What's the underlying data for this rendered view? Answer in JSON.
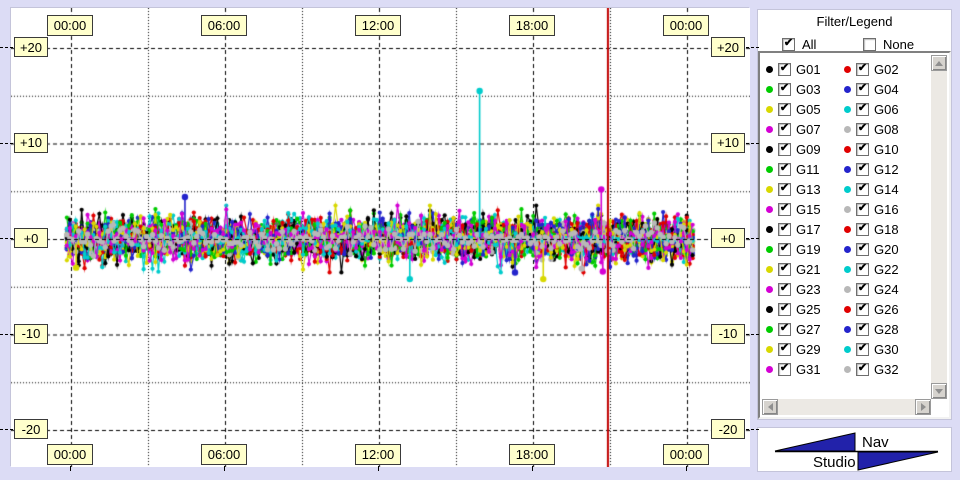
{
  "window": {
    "background": "#dcdcf5"
  },
  "chart_data": {
    "type": "scatter",
    "title": "",
    "x_axis": {
      "unit": "time",
      "range_hours": [
        0,
        24
      ],
      "major_hours": [
        0,
        6,
        12,
        18,
        24
      ],
      "tick_labels": [
        "00:00",
        "06:00",
        "12:00",
        "18:00",
        "00:00"
      ],
      "minor_hours": [
        3,
        9,
        15,
        21
      ],
      "grid": "dashed-major-dotted-minor"
    },
    "y_axis": {
      "range": [
        -20,
        20
      ],
      "major": [
        20,
        10,
        0,
        -10,
        -20
      ],
      "tick_labels": [
        "+20",
        "+10",
        "+0",
        "-10",
        "-20"
      ],
      "minor": [
        15,
        5,
        -5,
        -15
      ],
      "labels_both_sides": true
    },
    "cursor": {
      "hour": 20.92,
      "color": "#c00000"
    },
    "band": {
      "start_hour": -0.16,
      "end_hour": 24.25,
      "step_hours": 0.115,
      "sigma": 1.05,
      "clamp": 3.5,
      "seed": 42,
      "description": "dense noisy residual band for all satellites centered on 0, mostly within ±2.5"
    },
    "hug_zones": [
      {
        "series": "G30",
        "from": 17.4,
        "to": 24.3
      },
      {
        "series": "G23",
        "from": 14.6,
        "to": 17.2
      },
      {
        "series": "G15",
        "from": 4.9,
        "to": 7.8
      }
    ],
    "outliers": [
      {
        "series": "G30",
        "hour": 15.92,
        "value": 15.5,
        "stem_to": 0.2
      },
      {
        "series": "G23",
        "hour": 20.66,
        "value": 5.2,
        "stem_to": 0.4
      },
      {
        "series": "G23",
        "hour": 20.72,
        "value": -3.4,
        "stem_to": -0.4
      },
      {
        "series": "G12",
        "hour": 4.44,
        "value": 4.4,
        "stem_to": 0.9
      },
      {
        "series": "G14",
        "hour": 13.2,
        "value": -4.2,
        "stem_to": -0.7
      },
      {
        "series": "G13",
        "hour": 18.4,
        "value": -4.2,
        "stem_to": -0.9
      },
      {
        "series": "G20",
        "hour": 17.3,
        "value": -3.5,
        "stem_to": -0.9
      },
      {
        "series": "G08",
        "hour": 19.9,
        "value": -3.1,
        "stem_to": -0.6
      },
      {
        "series": "G13",
        "hour": 0.2,
        "value": -3.0,
        "stem_to": -0.5
      }
    ],
    "series": [
      {
        "id": "G01",
        "color": "#000000"
      },
      {
        "id": "G02",
        "color": "#e00000"
      },
      {
        "id": "G03",
        "color": "#00cc00"
      },
      {
        "id": "G04",
        "color": "#2424cc"
      },
      {
        "id": "G05",
        "color": "#d8d800"
      },
      {
        "id": "G06",
        "color": "#00cccc"
      },
      {
        "id": "G07",
        "color": "#d400d4"
      },
      {
        "id": "G08",
        "color": "#b8b8b8"
      },
      {
        "id": "G09",
        "color": "#000000"
      },
      {
        "id": "G10",
        "color": "#e00000"
      },
      {
        "id": "G11",
        "color": "#00cc00"
      },
      {
        "id": "G12",
        "color": "#2424cc"
      },
      {
        "id": "G13",
        "color": "#d8d800"
      },
      {
        "id": "G14",
        "color": "#00cccc"
      },
      {
        "id": "G15",
        "color": "#d400d4"
      },
      {
        "id": "G16",
        "color": "#b8b8b8"
      },
      {
        "id": "G17",
        "color": "#000000"
      },
      {
        "id": "G18",
        "color": "#e00000"
      },
      {
        "id": "G19",
        "color": "#00cc00"
      },
      {
        "id": "G20",
        "color": "#2424cc"
      },
      {
        "id": "G21",
        "color": "#d8d800"
      },
      {
        "id": "G22",
        "color": "#00cccc"
      },
      {
        "id": "G23",
        "color": "#d400d4"
      },
      {
        "id": "G24",
        "color": "#b8b8b8"
      },
      {
        "id": "G25",
        "color": "#000000"
      },
      {
        "id": "G26",
        "color": "#e00000"
      },
      {
        "id": "G27",
        "color": "#00cc00"
      },
      {
        "id": "G28",
        "color": "#2424cc"
      },
      {
        "id": "G29",
        "color": "#d8d800"
      },
      {
        "id": "G30",
        "color": "#00cccc"
      },
      {
        "id": "G31",
        "color": "#d400d4"
      },
      {
        "id": "G32",
        "color": "#b8b8b8"
      }
    ]
  },
  "legend": {
    "title": "Filter/Legend",
    "all_label": "All",
    "all_checked": true,
    "none_label": "None",
    "none_checked": false,
    "items": [
      {
        "id": "G01",
        "color": "#000000",
        "checked": true
      },
      {
        "id": "G02",
        "color": "#e00000",
        "checked": true
      },
      {
        "id": "G03",
        "color": "#00cc00",
        "checked": true
      },
      {
        "id": "G04",
        "color": "#2424cc",
        "checked": true
      },
      {
        "id": "G05",
        "color": "#d8d800",
        "checked": true
      },
      {
        "id": "G06",
        "color": "#00cccc",
        "checked": true
      },
      {
        "id": "G07",
        "color": "#d400d4",
        "checked": true
      },
      {
        "id": "G08",
        "color": "#b8b8b8",
        "checked": true
      },
      {
        "id": "G09",
        "color": "#000000",
        "checked": true
      },
      {
        "id": "G10",
        "color": "#e00000",
        "checked": true
      },
      {
        "id": "G11",
        "color": "#00cc00",
        "checked": true
      },
      {
        "id": "G12",
        "color": "#2424cc",
        "checked": true
      },
      {
        "id": "G13",
        "color": "#d8d800",
        "checked": true
      },
      {
        "id": "G14",
        "color": "#00cccc",
        "checked": true
      },
      {
        "id": "G15",
        "color": "#d400d4",
        "checked": true
      },
      {
        "id": "G16",
        "color": "#b8b8b8",
        "checked": true
      },
      {
        "id": "G17",
        "color": "#000000",
        "checked": true
      },
      {
        "id": "G18",
        "color": "#e00000",
        "checked": true
      },
      {
        "id": "G19",
        "color": "#00cc00",
        "checked": true
      },
      {
        "id": "G20",
        "color": "#2424cc",
        "checked": true
      },
      {
        "id": "G21",
        "color": "#d8d800",
        "checked": true
      },
      {
        "id": "G22",
        "color": "#00cccc",
        "checked": true
      },
      {
        "id": "G23",
        "color": "#d400d4",
        "checked": true
      },
      {
        "id": "G24",
        "color": "#b8b8b8",
        "checked": true
      },
      {
        "id": "G25",
        "color": "#000000",
        "checked": true
      },
      {
        "id": "G26",
        "color": "#e00000",
        "checked": true
      },
      {
        "id": "G27",
        "color": "#00cc00",
        "checked": true
      },
      {
        "id": "G28",
        "color": "#2424cc",
        "checked": true
      },
      {
        "id": "G29",
        "color": "#d8d800",
        "checked": true
      },
      {
        "id": "G30",
        "color": "#00cccc",
        "checked": true
      },
      {
        "id": "G31",
        "color": "#d400d4",
        "checked": true
      },
      {
        "id": "G32",
        "color": "#b8b8b8",
        "checked": true
      }
    ]
  },
  "logo": {
    "line1": "Nav",
    "line2": "Studio",
    "triangle_color": "#2222aa"
  }
}
